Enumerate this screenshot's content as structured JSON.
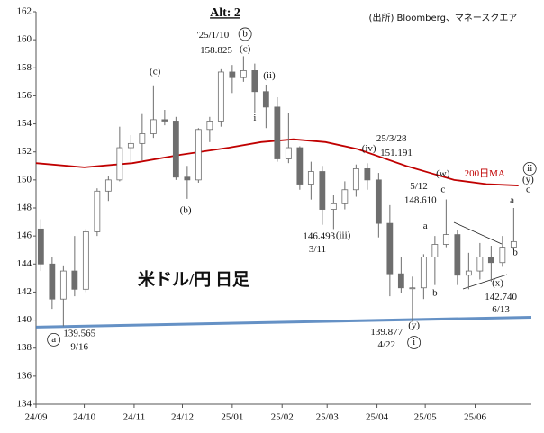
{
  "chart_data": {
    "type": "ohlc",
    "title": "Alt: 2",
    "source": "(出所) Bloomberg、マネースクエア",
    "label": "米ドル/円 日足",
    "color": "#6e6e6e",
    "x": [
      3,
      10,
      17,
      24,
      31,
      38,
      45,
      52,
      59,
      66,
      73,
      80,
      87,
      94,
      101,
      108,
      115,
      122,
      129,
      136,
      143,
      150,
      157,
      164,
      171,
      178,
      185,
      192,
      199,
      206,
      213,
      220,
      227,
      234,
      241,
      248,
      255,
      262,
      269,
      276,
      283,
      290,
      297
    ],
    "open": [
      146.5,
      144,
      141.5,
      143.5,
      142.2,
      146.3,
      149.2,
      150,
      152.3,
      152.6,
      153.3,
      154.3,
      154.2,
      150.2,
      150,
      153.6,
      154.2,
      157.7,
      157.3,
      157.8,
      156.3,
      155.2,
      151.5,
      152.3,
      149.7,
      150.6,
      147.9,
      148.3,
      149.3,
      150.8,
      150,
      146.9,
      143.3,
      142.3,
      142.3,
      144.5,
      145.4,
      146.1,
      143.2,
      143.5,
      144.5,
      144.1,
      145.2
    ],
    "high": [
      147.2,
      144.5,
      143.9,
      146,
      146.5,
      149.4,
      150.3,
      153.8,
      153.2,
      154.7,
      156.75,
      155,
      154.5,
      151,
      153.7,
      154.5,
      157.9,
      158.2,
      158.825,
      158.3,
      156.8,
      155.9,
      154.8,
      152.4,
      151.3,
      151,
      148.9,
      149.9,
      151.1,
      151.191,
      150.5,
      148.2,
      144.5,
      143.1,
      144.7,
      146,
      148.61,
      146.4,
      144.8,
      145.5,
      145.3,
      146,
      148
    ],
    "low": [
      143.5,
      140.8,
      139.565,
      141.7,
      142,
      146,
      148.5,
      149.9,
      151.3,
      151.4,
      153,
      153.9,
      150,
      148.65,
      149.8,
      152.7,
      153.8,
      156.2,
      157,
      154.8,
      153.7,
      151.3,
      151.2,
      149.3,
      148.6,
      146.8,
      146.493,
      147.9,
      148.8,
      149.3,
      145.9,
      141.7,
      141.9,
      139.877,
      141.5,
      142.5,
      145.2,
      142.5,
      142.2,
      142.9,
      142.74,
      143.8,
      145
    ],
    "close": [
      144,
      141.5,
      143.5,
      142.2,
      146.3,
      149.2,
      150,
      152.3,
      152.6,
      153.3,
      154.3,
      154.2,
      150.2,
      150,
      153.6,
      154.2,
      157.7,
      157.3,
      157.8,
      156.3,
      155.2,
      151.5,
      152.3,
      149.7,
      150.6,
      147.9,
      148.3,
      149.3,
      150.8,
      150,
      146.9,
      143.3,
      142.3,
      142.3,
      144.5,
      145.4,
      146.1,
      143.2,
      143.5,
      144.5,
      144.1,
      145.2,
      145.6
    ],
    "ma": {
      "name": "200日MA",
      "color": "#c00000",
      "x": [
        0,
        30,
        60,
        90,
        120,
        140,
        160,
        180,
        200,
        215,
        230,
        245,
        260,
        280,
        300
      ],
      "values": [
        151.2,
        150.9,
        151.2,
        151.8,
        152.3,
        152.7,
        152.9,
        152.7,
        152.2,
        151.6,
        151,
        150.5,
        150,
        149.7,
        149.6
      ]
    },
    "trendline": {
      "color": "#4a7ebb",
      "x": [
        0,
        308
      ],
      "values": [
        139.5,
        140.2
      ]
    },
    "annotations": [
      {
        "text": "a",
        "x": 11,
        "y": 138.6,
        "circled": true
      },
      {
        "text": "139.565",
        "x": 27,
        "y": 139.0
      },
      {
        "text": "9/16",
        "x": 27,
        "y": 138.05
      },
      {
        "text": "(c)",
        "x": 74,
        "y": 157.7
      },
      {
        "text": "(b)",
        "x": 93,
        "y": 147.8
      },
      {
        "text": "'25/1/10",
        "x": 110,
        "y": 160.3
      },
      {
        "text": "158.825",
        "x": 112,
        "y": 159.2
      },
      {
        "text": "b",
        "x": 130,
        "y": 160.4,
        "circled": true
      },
      {
        "text": "(c)",
        "x": 130,
        "y": 159.3
      },
      {
        "text": "(ii)",
        "x": 145,
        "y": 157.4
      },
      {
        "text": "i",
        "x": 136,
        "y": 154.4
      },
      {
        "text": "(iv)",
        "x": 207,
        "y": 152.2
      },
      {
        "text": "25/3/28",
        "x": 221,
        "y": 152.9
      },
      {
        "text": "151.191",
        "x": 224,
        "y": 151.9
      },
      {
        "text": "(iii)",
        "x": 191,
        "y": 146.0
      },
      {
        "text": "146.493",
        "x": 176,
        "y": 145.95
      },
      {
        "text": "3/11",
        "x": 175,
        "y": 145.0
      },
      {
        "text": "(w)",
        "x": 253,
        "y": 150.4
      },
      {
        "text": "200日MA",
        "x": 279,
        "y": 150.4,
        "color": "#c00000"
      },
      {
        "text": "5/12",
        "x": 238,
        "y": 149.5
      },
      {
        "text": "148.610",
        "x": 239,
        "y": 148.5
      },
      {
        "text": "c",
        "x": 253,
        "y": 149.3
      },
      {
        "text": "a",
        "x": 242,
        "y": 146.7
      },
      {
        "text": "b",
        "x": 248,
        "y": 141.9
      },
      {
        "text": "a",
        "x": 296,
        "y": 148.5
      },
      {
        "text": "b",
        "x": 298,
        "y": 144.8
      },
      {
        "text": "ii",
        "x": 307,
        "y": 150.8,
        "circled": true
      },
      {
        "text": "(y)",
        "x": 306,
        "y": 150.0
      },
      {
        "text": "c",
        "x": 306,
        "y": 149.3
      },
      {
        "text": "(x)",
        "x": 287,
        "y": 142.6
      },
      {
        "text": "142.740",
        "x": 289,
        "y": 141.6
      },
      {
        "text": "6/13",
        "x": 289,
        "y": 140.7
      },
      {
        "text": "139.877",
        "x": 218,
        "y": 139.1
      },
      {
        "text": "4/22",
        "x": 218,
        "y": 138.2
      },
      {
        "text": "(y)",
        "x": 235,
        "y": 139.6
      },
      {
        "text": "i",
        "x": 235,
        "y": 138.4,
        "circled": true
      }
    ],
    "xlim": [
      0,
      308
    ],
    "xticks": [
      {
        "value": 0,
        "label": "24/09"
      },
      {
        "value": 30,
        "label": "24/10"
      },
      {
        "value": 61,
        "label": "24/11"
      },
      {
        "value": 91,
        "label": "24/12"
      },
      {
        "value": 122,
        "label": "25/01"
      },
      {
        "value": 153,
        "label": "25/02"
      },
      {
        "value": 181,
        "label": "25/03"
      },
      {
        "value": 212,
        "label": "25/04"
      },
      {
        "value": 242,
        "label": "25/05"
      },
      {
        "value": 273,
        "label": "25/06"
      }
    ],
    "ylim": [
      134,
      162
    ],
    "yticks": [
      134,
      136,
      138,
      140,
      142,
      144,
      146,
      148,
      150,
      152,
      154,
      156,
      158,
      160,
      162
    ]
  }
}
